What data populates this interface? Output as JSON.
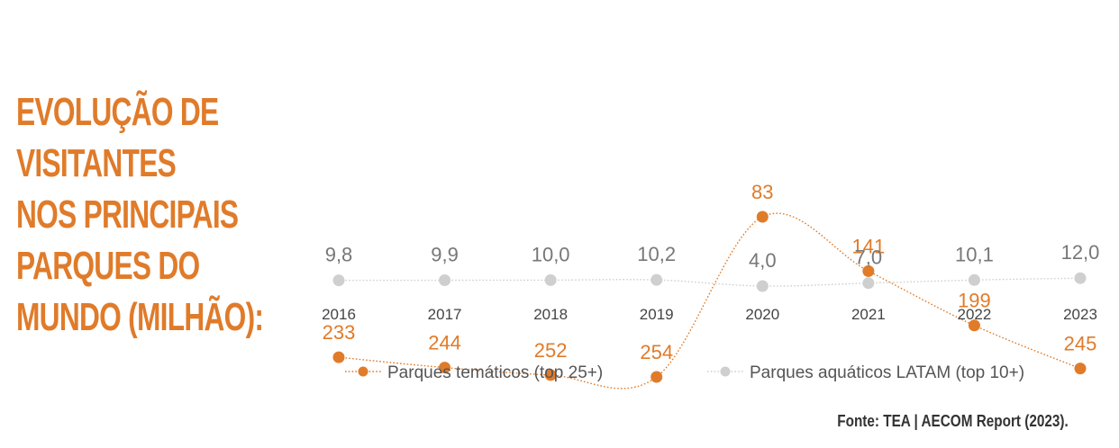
{
  "title": {
    "lines": [
      "Evolução de",
      "visitantes",
      "nos principais",
      "parques do",
      "mundo (milhão):"
    ]
  },
  "source": "Fonte: TEA | AECOM Report (2023).",
  "colors": {
    "theme": "#e07b2a",
    "water": "#cfcfcf",
    "title": "#e07b2a",
    "label_water": "#777777",
    "axis_text": "#444444"
  },
  "chart_data": {
    "type": "line",
    "title": "Evolução de visitantes nos principais parques do mundo (milhão):",
    "x": [
      "2016",
      "2017",
      "2018",
      "2019",
      "2020",
      "2021",
      "2022",
      "2023"
    ],
    "series": [
      {
        "name": "Parques temáticos (top 25+)",
        "values": [
          233,
          244,
          252,
          254,
          83,
          141,
          199,
          245
        ],
        "labels": [
          "233",
          "244",
          "252",
          "254",
          "83",
          "141",
          "199",
          "245"
        ]
      },
      {
        "name": "Parques aquáticos LATAM (top 10+)",
        "values": [
          9.8,
          9.9,
          10.0,
          10.2,
          4.0,
          7.0,
          10.1,
          12.0
        ],
        "labels": [
          "9,8",
          "9,9",
          "10,0",
          "10,2",
          "4,0",
          "7,0",
          "10,1",
          "12,0"
        ]
      }
    ],
    "legend": "bottom"
  }
}
